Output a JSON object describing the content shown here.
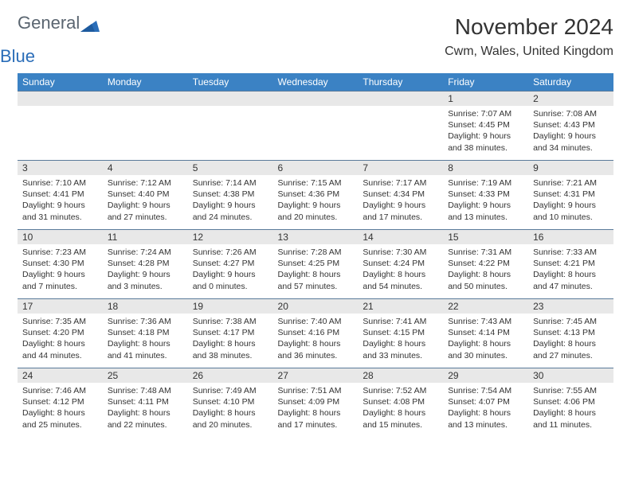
{
  "brand": {
    "word1": "General",
    "word2": "Blue",
    "logo_color": "#2a6db8",
    "text_color_gray": "#5a6570"
  },
  "title": "November 2024",
  "location": "Cwm, Wales, United Kingdom",
  "styling": {
    "header_bg": "#3b82c4",
    "header_text": "#ffffff",
    "daynum_bg": "#e8e8e8",
    "border_color": "#5a7a9a",
    "body_font_size": 10.5,
    "header_font_size": 12,
    "title_font_size": 28,
    "location_font_size": 16,
    "background": "#ffffff"
  },
  "day_headers": [
    "Sunday",
    "Monday",
    "Tuesday",
    "Wednesday",
    "Thursday",
    "Friday",
    "Saturday"
  ],
  "weeks": [
    [
      {
        "n": "",
        "sunrise": "",
        "sunset": "",
        "daylight": ""
      },
      {
        "n": "",
        "sunrise": "",
        "sunset": "",
        "daylight": ""
      },
      {
        "n": "",
        "sunrise": "",
        "sunset": "",
        "daylight": ""
      },
      {
        "n": "",
        "sunrise": "",
        "sunset": "",
        "daylight": ""
      },
      {
        "n": "",
        "sunrise": "",
        "sunset": "",
        "daylight": ""
      },
      {
        "n": "1",
        "sunrise": "Sunrise: 7:07 AM",
        "sunset": "Sunset: 4:45 PM",
        "daylight": "Daylight: 9 hours and 38 minutes."
      },
      {
        "n": "2",
        "sunrise": "Sunrise: 7:08 AM",
        "sunset": "Sunset: 4:43 PM",
        "daylight": "Daylight: 9 hours and 34 minutes."
      }
    ],
    [
      {
        "n": "3",
        "sunrise": "Sunrise: 7:10 AM",
        "sunset": "Sunset: 4:41 PM",
        "daylight": "Daylight: 9 hours and 31 minutes."
      },
      {
        "n": "4",
        "sunrise": "Sunrise: 7:12 AM",
        "sunset": "Sunset: 4:40 PM",
        "daylight": "Daylight: 9 hours and 27 minutes."
      },
      {
        "n": "5",
        "sunrise": "Sunrise: 7:14 AM",
        "sunset": "Sunset: 4:38 PM",
        "daylight": "Daylight: 9 hours and 24 minutes."
      },
      {
        "n": "6",
        "sunrise": "Sunrise: 7:15 AM",
        "sunset": "Sunset: 4:36 PM",
        "daylight": "Daylight: 9 hours and 20 minutes."
      },
      {
        "n": "7",
        "sunrise": "Sunrise: 7:17 AM",
        "sunset": "Sunset: 4:34 PM",
        "daylight": "Daylight: 9 hours and 17 minutes."
      },
      {
        "n": "8",
        "sunrise": "Sunrise: 7:19 AM",
        "sunset": "Sunset: 4:33 PM",
        "daylight": "Daylight: 9 hours and 13 minutes."
      },
      {
        "n": "9",
        "sunrise": "Sunrise: 7:21 AM",
        "sunset": "Sunset: 4:31 PM",
        "daylight": "Daylight: 9 hours and 10 minutes."
      }
    ],
    [
      {
        "n": "10",
        "sunrise": "Sunrise: 7:23 AM",
        "sunset": "Sunset: 4:30 PM",
        "daylight": "Daylight: 9 hours and 7 minutes."
      },
      {
        "n": "11",
        "sunrise": "Sunrise: 7:24 AM",
        "sunset": "Sunset: 4:28 PM",
        "daylight": "Daylight: 9 hours and 3 minutes."
      },
      {
        "n": "12",
        "sunrise": "Sunrise: 7:26 AM",
        "sunset": "Sunset: 4:27 PM",
        "daylight": "Daylight: 9 hours and 0 minutes."
      },
      {
        "n": "13",
        "sunrise": "Sunrise: 7:28 AM",
        "sunset": "Sunset: 4:25 PM",
        "daylight": "Daylight: 8 hours and 57 minutes."
      },
      {
        "n": "14",
        "sunrise": "Sunrise: 7:30 AM",
        "sunset": "Sunset: 4:24 PM",
        "daylight": "Daylight: 8 hours and 54 minutes."
      },
      {
        "n": "15",
        "sunrise": "Sunrise: 7:31 AM",
        "sunset": "Sunset: 4:22 PM",
        "daylight": "Daylight: 8 hours and 50 minutes."
      },
      {
        "n": "16",
        "sunrise": "Sunrise: 7:33 AM",
        "sunset": "Sunset: 4:21 PM",
        "daylight": "Daylight: 8 hours and 47 minutes."
      }
    ],
    [
      {
        "n": "17",
        "sunrise": "Sunrise: 7:35 AM",
        "sunset": "Sunset: 4:20 PM",
        "daylight": "Daylight: 8 hours and 44 minutes."
      },
      {
        "n": "18",
        "sunrise": "Sunrise: 7:36 AM",
        "sunset": "Sunset: 4:18 PM",
        "daylight": "Daylight: 8 hours and 41 minutes."
      },
      {
        "n": "19",
        "sunrise": "Sunrise: 7:38 AM",
        "sunset": "Sunset: 4:17 PM",
        "daylight": "Daylight: 8 hours and 38 minutes."
      },
      {
        "n": "20",
        "sunrise": "Sunrise: 7:40 AM",
        "sunset": "Sunset: 4:16 PM",
        "daylight": "Daylight: 8 hours and 36 minutes."
      },
      {
        "n": "21",
        "sunrise": "Sunrise: 7:41 AM",
        "sunset": "Sunset: 4:15 PM",
        "daylight": "Daylight: 8 hours and 33 minutes."
      },
      {
        "n": "22",
        "sunrise": "Sunrise: 7:43 AM",
        "sunset": "Sunset: 4:14 PM",
        "daylight": "Daylight: 8 hours and 30 minutes."
      },
      {
        "n": "23",
        "sunrise": "Sunrise: 7:45 AM",
        "sunset": "Sunset: 4:13 PM",
        "daylight": "Daylight: 8 hours and 27 minutes."
      }
    ],
    [
      {
        "n": "24",
        "sunrise": "Sunrise: 7:46 AM",
        "sunset": "Sunset: 4:12 PM",
        "daylight": "Daylight: 8 hours and 25 minutes."
      },
      {
        "n": "25",
        "sunrise": "Sunrise: 7:48 AM",
        "sunset": "Sunset: 4:11 PM",
        "daylight": "Daylight: 8 hours and 22 minutes."
      },
      {
        "n": "26",
        "sunrise": "Sunrise: 7:49 AM",
        "sunset": "Sunset: 4:10 PM",
        "daylight": "Daylight: 8 hours and 20 minutes."
      },
      {
        "n": "27",
        "sunrise": "Sunrise: 7:51 AM",
        "sunset": "Sunset: 4:09 PM",
        "daylight": "Daylight: 8 hours and 17 minutes."
      },
      {
        "n": "28",
        "sunrise": "Sunrise: 7:52 AM",
        "sunset": "Sunset: 4:08 PM",
        "daylight": "Daylight: 8 hours and 15 minutes."
      },
      {
        "n": "29",
        "sunrise": "Sunrise: 7:54 AM",
        "sunset": "Sunset: 4:07 PM",
        "daylight": "Daylight: 8 hours and 13 minutes."
      },
      {
        "n": "30",
        "sunrise": "Sunrise: 7:55 AM",
        "sunset": "Sunset: 4:06 PM",
        "daylight": "Daylight: 8 hours and 11 minutes."
      }
    ]
  ]
}
